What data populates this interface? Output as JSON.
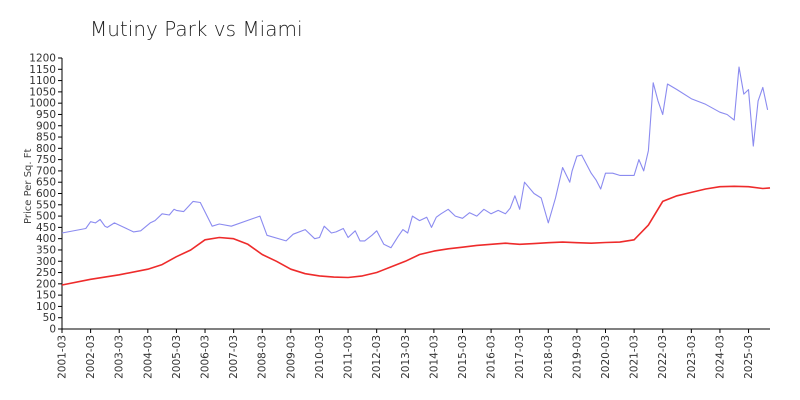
{
  "chart_data": {
    "type": "line",
    "title": "Mutiny Park vs Miami",
    "ylabel": "Price Per Sq. Ft",
    "xlabel": "",
    "ylim": [
      0,
      1200
    ],
    "yticks": [
      0,
      50,
      100,
      150,
      200,
      250,
      300,
      350,
      400,
      450,
      500,
      550,
      600,
      650,
      700,
      750,
      800,
      850,
      900,
      950,
      1000,
      1050,
      1100,
      1150,
      1200
    ],
    "xlim": [
      "2001-03",
      "2025-12"
    ],
    "xticks": [
      "2001-03",
      "2002-03",
      "2003-03",
      "2004-03",
      "2005-03",
      "2006-03",
      "2007-03",
      "2008-03",
      "2009-03",
      "2010-03",
      "2011-03",
      "2012-03",
      "2013-03",
      "2014-03",
      "2015-03",
      "2016-03",
      "2017-03",
      "2018-03",
      "2019-03",
      "2020-03",
      "2021-03",
      "2022-03",
      "2023-03",
      "2024-03",
      "2025-03"
    ],
    "colors": {
      "mutiny_park": "#8b8bf0",
      "miami": "#ee2b2b"
    },
    "series": [
      {
        "key": "mutiny_park",
        "x": [
          "2001-03",
          "2002-01",
          "2002-03",
          "2002-05",
          "2002-07",
          "2002-09",
          "2002-10",
          "2003-01",
          "2003-05",
          "2003-09",
          "2003-12",
          "2004-04",
          "2004-06",
          "2004-09",
          "2004-12",
          "2005-02",
          "2005-03",
          "2005-06",
          "2005-10",
          "2006-01",
          "2006-06",
          "2006-09",
          "2007-02",
          "2008-02",
          "2008-05",
          "2009-01",
          "2009-04",
          "2009-09",
          "2010-01",
          "2010-03",
          "2010-05",
          "2010-08",
          "2010-10",
          "2011-01",
          "2011-03",
          "2011-06",
          "2011-08",
          "2011-10",
          "2012-01",
          "2012-03",
          "2012-06",
          "2012-09",
          "2012-12",
          "2013-02",
          "2013-04",
          "2013-06",
          "2013-09",
          "2013-12",
          "2014-02",
          "2014-04",
          "2014-06",
          "2014-09",
          "2014-12",
          "2015-03",
          "2015-06",
          "2015-09",
          "2015-12",
          "2016-03",
          "2016-06",
          "2016-09",
          "2016-11",
          "2017-01",
          "2017-03",
          "2017-05",
          "2017-09",
          "2017-12",
          "2018-03",
          "2018-06",
          "2018-09",
          "2018-12",
          "2019-01",
          "2019-03",
          "2019-05",
          "2019-07",
          "2019-09",
          "2019-11",
          "2020-01",
          "2020-03",
          "2020-06",
          "2020-09",
          "2021-03",
          "2021-05",
          "2021-07",
          "2021-09",
          "2021-11",
          "2022-01",
          "2022-03",
          "2022-05",
          "2022-09",
          "2023-03",
          "2023-09",
          "2024-03",
          "2024-06",
          "2024-09",
          "2024-11",
          "2025-01",
          "2025-03",
          "2025-05",
          "2025-07",
          "2025-09",
          "2025-11"
        ],
        "y": [
          425,
          445,
          475,
          470,
          485,
          455,
          450,
          470,
          450,
          430,
          435,
          470,
          480,
          510,
          505,
          530,
          525,
          520,
          565,
          560,
          455,
          465,
          455,
          500,
          415,
          390,
          420,
          440,
          400,
          405,
          455,
          425,
          430,
          445,
          405,
          435,
          390,
          390,
          415,
          435,
          375,
          360,
          410,
          440,
          425,
          500,
          480,
          495,
          450,
          495,
          510,
          530,
          500,
          490,
          515,
          500,
          530,
          510,
          525,
          510,
          535,
          590,
          530,
          650,
          600,
          580,
          470,
          580,
          715,
          650,
          700,
          765,
          770,
          730,
          690,
          660,
          620,
          690,
          690,
          680,
          680,
          750,
          700,
          790,
          1090,
          1010,
          950,
          1085,
          1060,
          1020,
          995,
          960,
          950,
          925,
          1160,
          1040,
          1060,
          810,
          1010,
          1070,
          970
        ]
      },
      {
        "key": "miami",
        "x": [
          "2001-03",
          "2002-03",
          "2003-03",
          "2004-03",
          "2004-09",
          "2005-03",
          "2005-09",
          "2006-03",
          "2006-09",
          "2007-03",
          "2007-09",
          "2008-03",
          "2008-09",
          "2009-03",
          "2009-09",
          "2010-03",
          "2010-09",
          "2011-03",
          "2011-09",
          "2012-03",
          "2012-09",
          "2013-03",
          "2013-09",
          "2014-03",
          "2014-09",
          "2015-03",
          "2015-09",
          "2016-03",
          "2016-09",
          "2017-03",
          "2017-09",
          "2018-03",
          "2018-09",
          "2019-03",
          "2019-09",
          "2020-03",
          "2020-09",
          "2021-03",
          "2021-09",
          "2022-03",
          "2022-09",
          "2023-03",
          "2023-09",
          "2024-03",
          "2024-09",
          "2025-03",
          "2025-09",
          "2025-12"
        ],
        "y": [
          195,
          220,
          240,
          265,
          285,
          320,
          350,
          395,
          405,
          400,
          375,
          330,
          300,
          265,
          245,
          235,
          230,
          228,
          235,
          250,
          275,
          300,
          330,
          345,
          355,
          362,
          370,
          375,
          380,
          375,
          378,
          382,
          385,
          382,
          380,
          383,
          385,
          395,
          460,
          565,
          590,
          605,
          620,
          630,
          632,
          630,
          622,
          625
        ]
      }
    ]
  }
}
